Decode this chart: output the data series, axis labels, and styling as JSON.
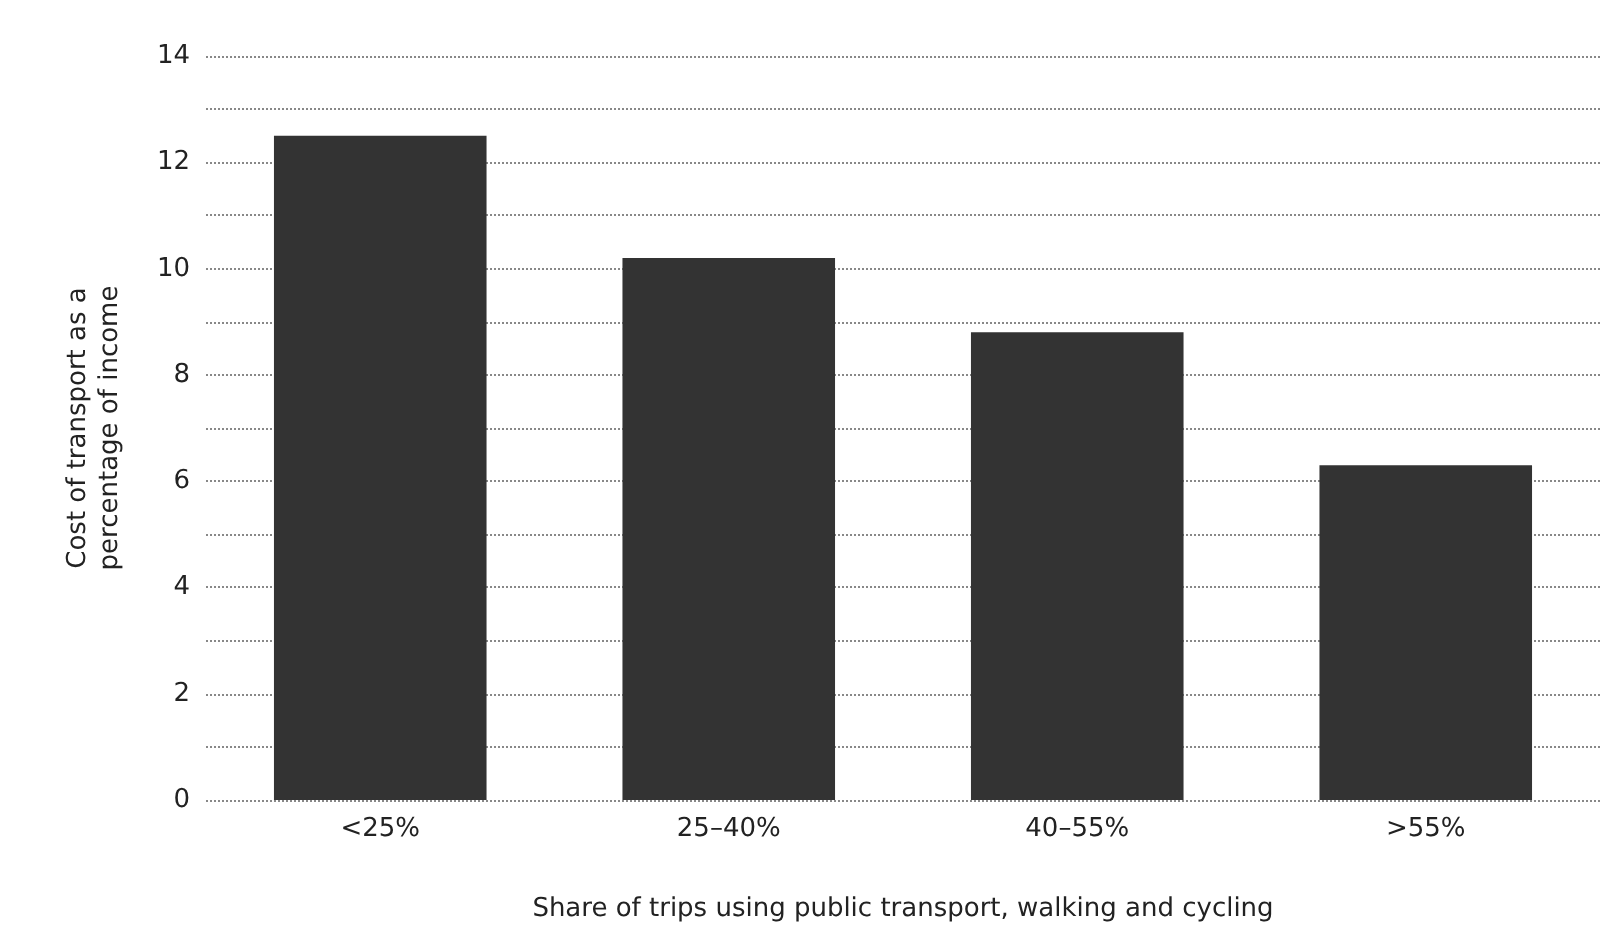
{
  "chart_data": {
    "type": "bar",
    "xlabel": "Share of trips using public transport, walking and cycling",
    "ylabel": "Cost of transport as a\npercentage of income",
    "categories": [
      "<25%",
      "25–40%",
      "40–55%",
      ">55%"
    ],
    "values": [
      12.5,
      10.2,
      8.8,
      6.3
    ],
    "color": "#333333",
    "ylim": [
      0,
      14
    ],
    "yticks": [
      0,
      {
        "value": 1,
        "label": null
      },
      2,
      {
        "value": 3,
        "label": null
      },
      4,
      {
        "value": 5,
        "label": null
      },
      6,
      {
        "value": 7,
        "label": null
      },
      8,
      {
        "value": 9,
        "label": null
      },
      10,
      {
        "value": 11,
        "label": null
      },
      12,
      {
        "value": 13,
        "label": null
      },
      14
    ],
    "grid": "y"
  }
}
